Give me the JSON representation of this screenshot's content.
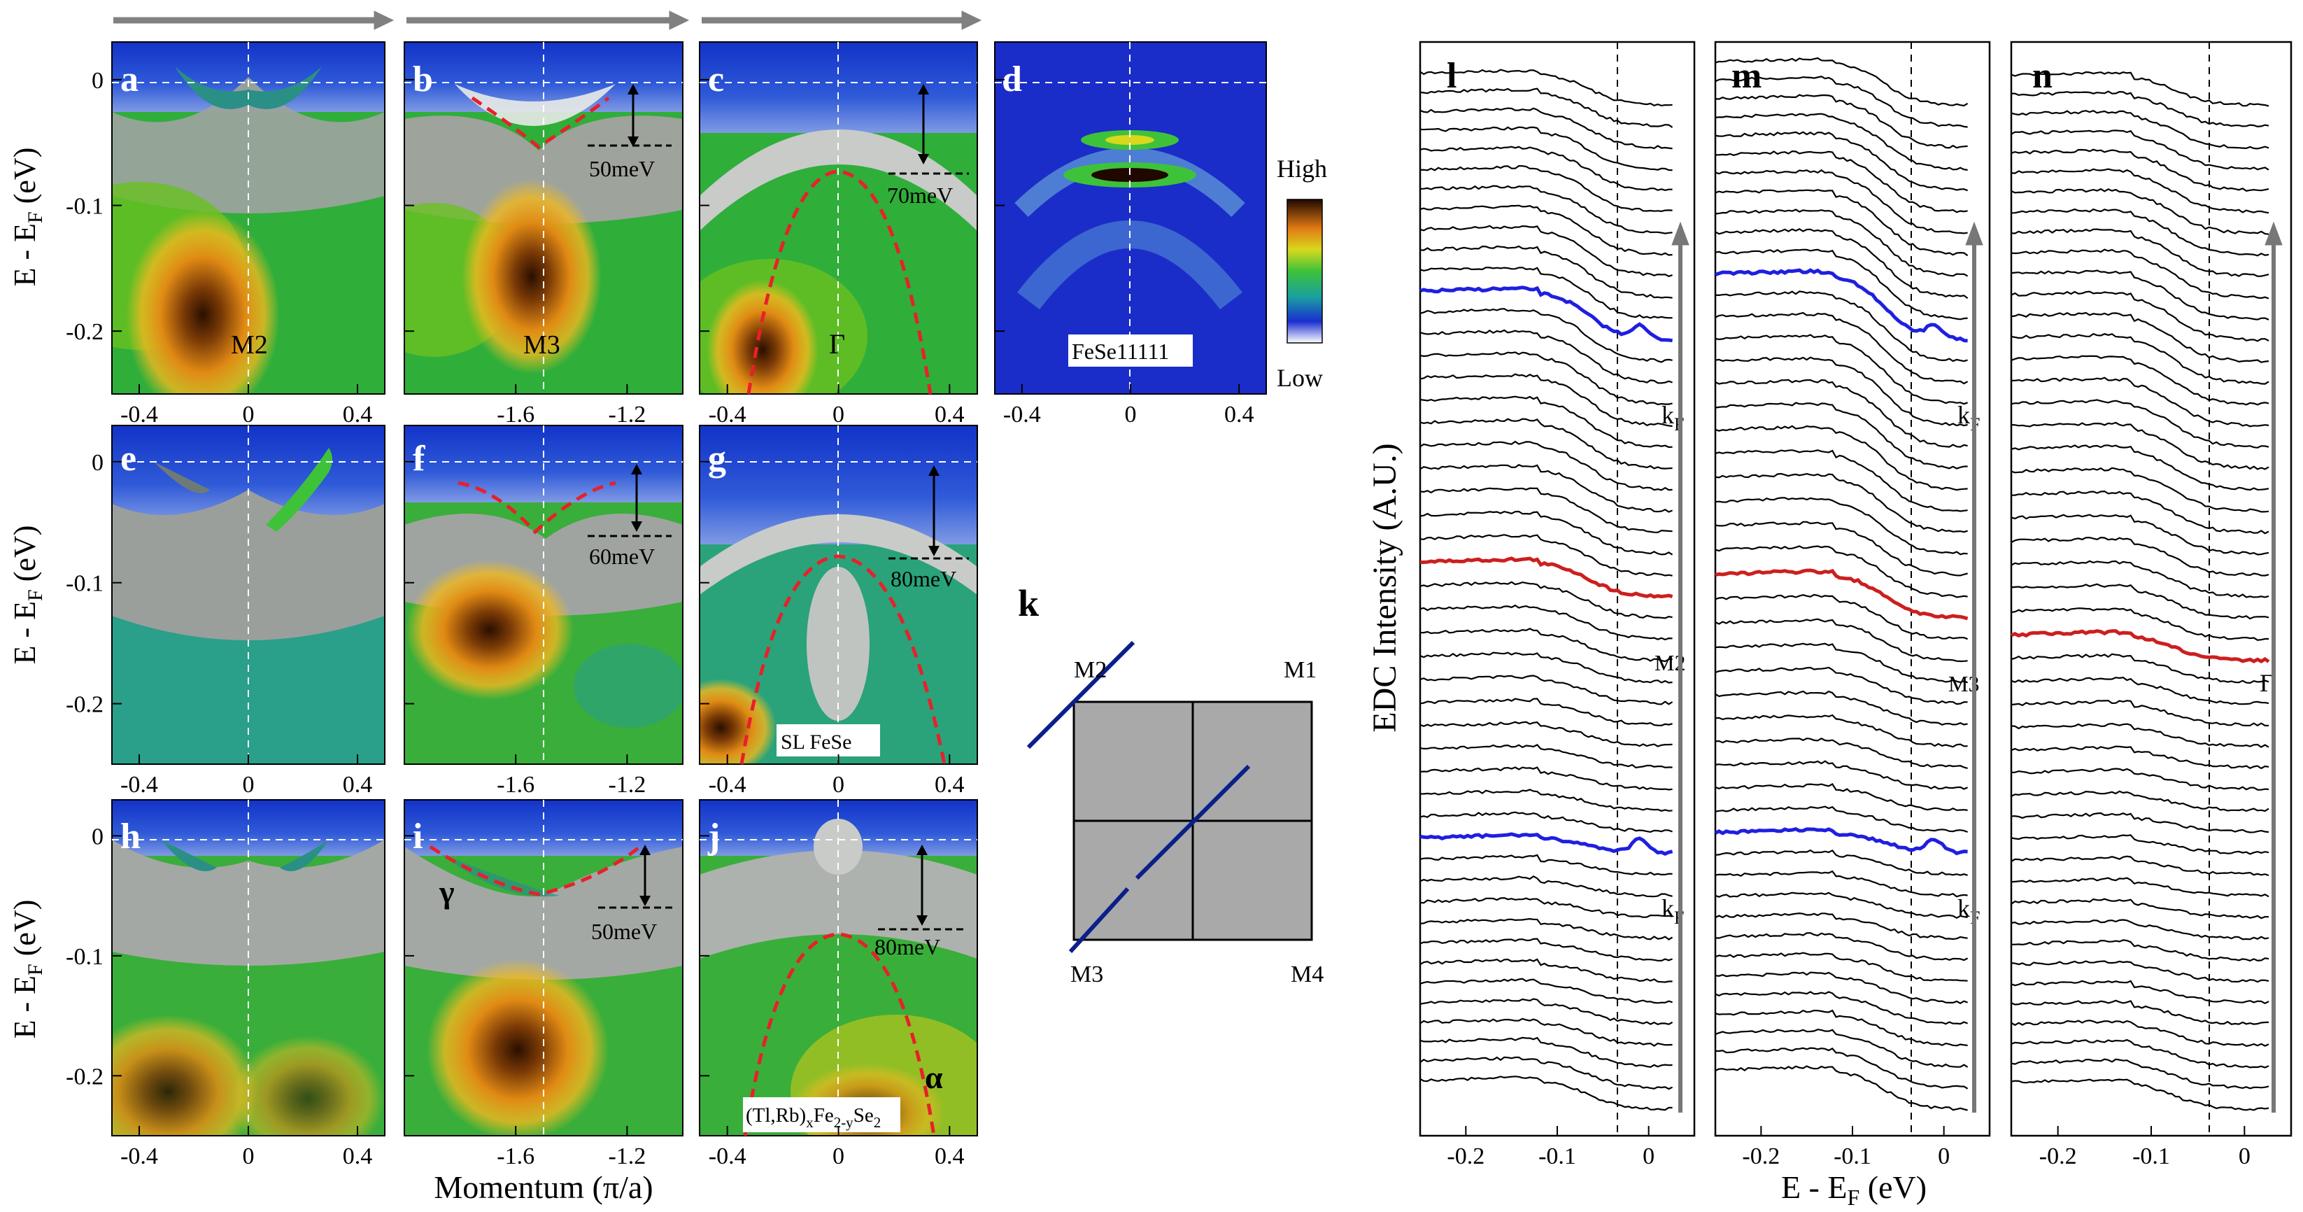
{
  "panels": {
    "a": {
      "label": "a",
      "tag": "M2",
      "xticks": [
        "-0.4",
        "0",
        "0.4"
      ]
    },
    "b": {
      "label": "b",
      "tag": "M3",
      "gap": "50meV",
      "xticks": [
        "-1.6",
        "-1.2"
      ]
    },
    "c": {
      "label": "c",
      "tag": "Γ",
      "gap": "70meV",
      "xticks": [
        "-0.4",
        "0",
        "0.4"
      ]
    },
    "d": {
      "label": "d",
      "tag": "FeSe11111",
      "xticks": [
        "-0.4",
        "0",
        "0.4"
      ],
      "colorbar_high": "High",
      "colorbar_low": "Low"
    },
    "e": {
      "label": "e",
      "xticks": [
        "-0.4",
        "0",
        "0.4"
      ]
    },
    "f": {
      "label": "f",
      "gap": "60meV",
      "xticks": [
        "-1.6",
        "-1.2"
      ]
    },
    "g": {
      "label": "g",
      "tag": "SL FeSe",
      "gap": "80meV",
      "xticks": [
        "-0.4",
        "0",
        "0.4"
      ]
    },
    "h": {
      "label": "h",
      "xticks": [
        "-0.4",
        "0",
        "0.4"
      ]
    },
    "i": {
      "label": "i",
      "band": "γ",
      "gap": "50meV",
      "xticks": [
        "-1.6",
        "-1.2"
      ]
    },
    "j": {
      "label": "j",
      "band": "α",
      "gap": "80meV",
      "xticks": [
        "-0.4",
        "0",
        "0.4"
      ],
      "compound_a": "(Tl,Rb)",
      "compound_sub1": "x",
      "compound_b": "Fe",
      "compound_sub2": "2-y",
      "compound_c": "Se",
      "compound_sub3": "2"
    }
  },
  "axes": {
    "ylabel_main": "E - E",
    "ylabel_sub": "F",
    "ylabel_unit": " (eV)",
    "yticks": [
      "0",
      "-0.1",
      "-0.2"
    ],
    "xlabel": "Momentum (π/a)",
    "edc_ylabel": "EDC Intensity (A.U.)",
    "edc_xlabel_main": "E - E",
    "edc_xlabel_sub": "F",
    "edc_xlabel_unit": "  (eV)",
    "edc_xticks": [
      "-0.2",
      "-0.1",
      "0"
    ]
  },
  "brillouin": {
    "label": "k",
    "corners": [
      "M1",
      "M2",
      "M3",
      "M4"
    ]
  },
  "edc": {
    "l": {
      "label": "l",
      "kf_top": "k",
      "kf_sub": "F",
      "mid": "M2",
      "kf_bottom": "k"
    },
    "m": {
      "label": "m",
      "kf_top": "k",
      "kf_sub": "F",
      "mid": "M3",
      "kf_bottom": "k"
    },
    "n": {
      "label": "n",
      "mid": "Γ"
    }
  },
  "colors": {
    "curve": "#000000",
    "kf_curve": "#1f1fe0",
    "center_curve": "#cc1f1f",
    "arrow": "#777777",
    "gap_curve": "#e8202a",
    "bz_fill": "#a9a9a9",
    "bz_cut": "#0b1f8a"
  }
}
